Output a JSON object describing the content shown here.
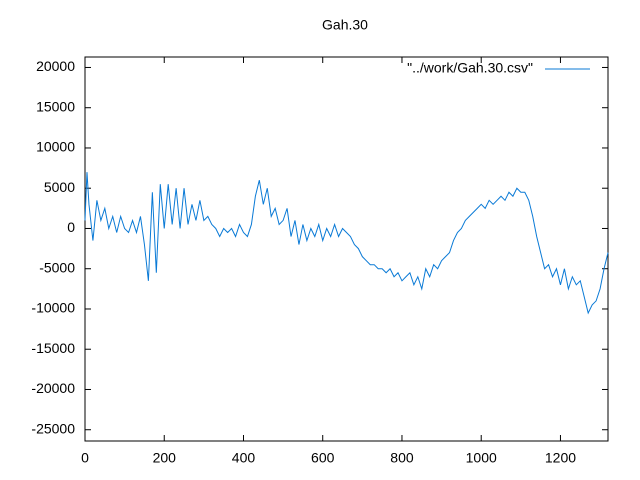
{
  "chart_data": {
    "type": "line",
    "title": "Gah.30",
    "x": [
      0,
      5,
      10,
      20,
      30,
      40,
      50,
      60,
      70,
      80,
      90,
      100,
      110,
      120,
      130,
      140,
      150,
      160,
      170,
      180,
      190,
      200,
      210,
      220,
      230,
      240,
      250,
      260,
      270,
      280,
      290,
      300,
      310,
      320,
      330,
      340,
      350,
      360,
      370,
      380,
      390,
      400,
      410,
      420,
      430,
      440,
      450,
      460,
      470,
      480,
      490,
      500,
      510,
      520,
      530,
      540,
      550,
      560,
      570,
      580,
      590,
      600,
      610,
      620,
      630,
      640,
      650,
      660,
      670,
      680,
      690,
      700,
      710,
      720,
      730,
      740,
      750,
      760,
      770,
      780,
      790,
      800,
      810,
      820,
      830,
      840,
      850,
      860,
      870,
      880,
      890,
      900,
      910,
      920,
      930,
      940,
      950,
      960,
      970,
      980,
      990,
      1000,
      1010,
      1020,
      1030,
      1040,
      1050,
      1060,
      1070,
      1080,
      1090,
      1100,
      1110,
      1120,
      1130,
      1140,
      1150,
      1160,
      1170,
      1180,
      1190,
      1200,
      1210,
      1220,
      1230,
      1240,
      1250,
      1260,
      1270,
      1280,
      1290,
      1300,
      1310,
      1320
    ],
    "series": [
      {
        "name": "\"../work/Gah.30.csv\"",
        "color": "#0a7ad6",
        "values": [
          1000,
          7000,
          3000,
          -1500,
          3500,
          1000,
          2500,
          0,
          1500,
          -500,
          1500,
          0,
          -500,
          1000,
          -500,
          1500,
          -2000,
          -6500,
          4500,
          -5500,
          5500,
          0,
          5500,
          500,
          5000,
          0,
          5000,
          500,
          3000,
          1000,
          3500,
          1000,
          1500,
          500,
          0,
          -1000,
          0,
          -500,
          0,
          -1000,
          500,
          -500,
          -1000,
          500,
          4000,
          6000,
          3000,
          5000,
          1500,
          2500,
          500,
          1000,
          2500,
          -1000,
          1000,
          -2000,
          500,
          -1500,
          0,
          -1000,
          500,
          -1500,
          0,
          -1000,
          500,
          -1000,
          0,
          -500,
          -1000,
          -2000,
          -2500,
          -3500,
          -4000,
          -4500,
          -4500,
          -5000,
          -5000,
          -5500,
          -5000,
          -6000,
          -5500,
          -6500,
          -6000,
          -5500,
          -7000,
          -6000,
          -7500,
          -5000,
          -6000,
          -4500,
          -5000,
          -4000,
          -3500,
          -3000,
          -1500,
          -500,
          0,
          1000,
          1500,
          2000,
          2500,
          3000,
          2500,
          3500,
          3000,
          3500,
          4000,
          3500,
          4500,
          4000,
          5000,
          4500,
          4500,
          3500,
          1500,
          -1000,
          -3000,
          -5000,
          -4500,
          -6000,
          -5000,
          -7000,
          -5000,
          -7500,
          -6000,
          -7000,
          -6500,
          -8500,
          -10500,
          -9500,
          -9000,
          -7500,
          -5000,
          -3000
        ]
      }
    ],
    "xlim": [
      0,
      1320
    ],
    "ylim": [
      -26400,
      21300
    ],
    "xticks": [
      0,
      200,
      400,
      600,
      800,
      1000,
      1200
    ],
    "yticks": [
      -25000,
      -20000,
      -15000,
      -10000,
      -5000,
      0,
      5000,
      10000,
      15000,
      20000
    ],
    "legend": "top-right"
  }
}
